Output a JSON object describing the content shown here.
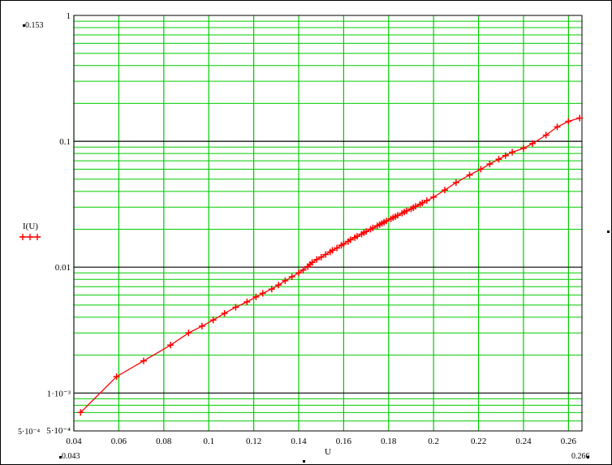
{
  "chart_data": {
    "type": "scatter",
    "xlabel": "U",
    "ylabel": "I(U)",
    "xscale": "linear",
    "yscale": "log",
    "xlim": [
      0.04,
      0.266
    ],
    "ylim": [
      0.0005,
      1
    ],
    "grid": true,
    "x_ticks": [
      "0.04",
      "0.06",
      "0.08",
      "0.1",
      "0.12",
      "0.14",
      "0.16",
      "0.18",
      "0.2",
      "0.22",
      "0.24",
      "0.26"
    ],
    "y_ticks": [
      "1",
      "0.1",
      "0.01",
      "1·10⁻³",
      "5·10⁻⁴"
    ],
    "range_markers": {
      "y_max": "0.153",
      "y_min": "5·10⁻⁴",
      "x_min": "0.043",
      "x_max": "0.266"
    },
    "legend_symbol": "+++",
    "series": [
      {
        "name": "I(U)",
        "color": "#ff0000",
        "marker": "+",
        "x": [
          0.043,
          0.059,
          0.071,
          0.083,
          0.091,
          0.097,
          0.102,
          0.107,
          0.112,
          0.117,
          0.121,
          0.124,
          0.128,
          0.131,
          0.134,
          0.137,
          0.14,
          0.142,
          0.144,
          0.145,
          0.146,
          0.148,
          0.15,
          0.152,
          0.154,
          0.155,
          0.157,
          0.159,
          0.16,
          0.162,
          0.163,
          0.165,
          0.166,
          0.168,
          0.169,
          0.17,
          0.172,
          0.173,
          0.175,
          0.176,
          0.177,
          0.178,
          0.179,
          0.181,
          0.182,
          0.183,
          0.184,
          0.186,
          0.187,
          0.188,
          0.19,
          0.191,
          0.192,
          0.194,
          0.195,
          0.197,
          0.2,
          0.205,
          0.21,
          0.216,
          0.221,
          0.225,
          0.229,
          0.232,
          0.235,
          0.24,
          0.244,
          0.25,
          0.255,
          0.26,
          0.265
        ],
        "y": [
          0.0007,
          0.00135,
          0.0018,
          0.0024,
          0.003,
          0.0034,
          0.0038,
          0.0043,
          0.0048,
          0.0053,
          0.0058,
          0.0062,
          0.0067,
          0.0072,
          0.0078,
          0.0084,
          0.009,
          0.0095,
          0.0101,
          0.0105,
          0.0109,
          0.0115,
          0.012,
          0.0126,
          0.0132,
          0.0136,
          0.0142,
          0.0149,
          0.0153,
          0.016,
          0.0165,
          0.0172,
          0.0176,
          0.0183,
          0.0188,
          0.0192,
          0.02,
          0.0205,
          0.0213,
          0.0218,
          0.0223,
          0.0228,
          0.0233,
          0.0242,
          0.0247,
          0.0252,
          0.0258,
          0.0268,
          0.0274,
          0.028,
          0.029,
          0.0297,
          0.0304,
          0.0316,
          0.0324,
          0.0338,
          0.036,
          0.041,
          0.047,
          0.054,
          0.06,
          0.066,
          0.072,
          0.077,
          0.082,
          0.088,
          0.096,
          0.112,
          0.13,
          0.144,
          0.153
        ]
      }
    ]
  }
}
